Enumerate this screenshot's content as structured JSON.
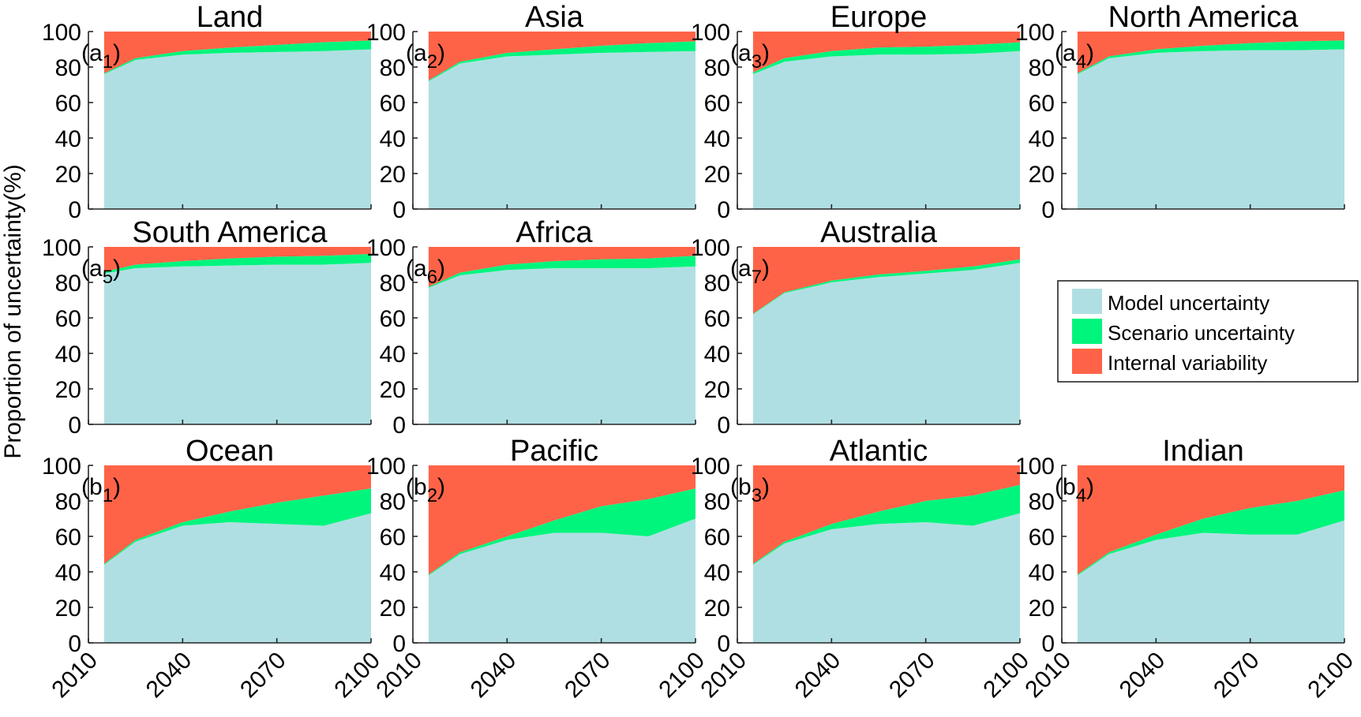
{
  "figure": {
    "ylabel": "Proportion of uncertainty(%)",
    "colors": {
      "model": "#b0dfe3",
      "scenario": "#00f57d",
      "internal": "#ff6347",
      "axis": "#262626"
    },
    "legend": {
      "placement": "right, second row",
      "entries": [
        {
          "key": "model",
          "label": "Model uncertainty"
        },
        {
          "key": "scenario",
          "label": "Scenario uncertainty"
        },
        {
          "key": "internal",
          "label": "Internal variability"
        }
      ]
    }
  },
  "chart_data": [
    {
      "type": "area",
      "title": "Land",
      "panel_label": {
        "letter": "a",
        "sub": "1"
      },
      "x": [
        2015,
        2025,
        2040,
        2055,
        2070,
        2085,
        2100
      ],
      "series": [
        {
          "name": "Model uncertainty",
          "values": [
            76,
            84,
            87,
            88,
            88.5,
            89,
            90
          ]
        },
        {
          "name": "Scenario uncertainty",
          "values": [
            0.5,
            1,
            2,
            3,
            4,
            5,
            5
          ]
        },
        {
          "name": "Internal variability",
          "values": [
            23.5,
            15,
            11,
            9,
            7.5,
            6,
            5
          ]
        }
      ],
      "xlim": [
        2010,
        2100
      ],
      "ylim": [
        0,
        100
      ],
      "xticks": [
        "2010",
        "2040",
        "2070",
        "2100"
      ],
      "yticks": [
        "0",
        "20",
        "40",
        "60",
        "80",
        "100"
      ]
    },
    {
      "type": "area",
      "title": "Asia",
      "panel_label": {
        "letter": "a",
        "sub": "2"
      },
      "x": [
        2015,
        2025,
        2040,
        2055,
        2070,
        2085,
        2100
      ],
      "series": [
        {
          "name": "Model uncertainty",
          "values": [
            72,
            82,
            86,
            87,
            88,
            88.5,
            89
          ]
        },
        {
          "name": "Scenario uncertainty",
          "values": [
            0.5,
            1,
            2,
            3,
            4,
            5,
            5.5
          ]
        },
        {
          "name": "Internal variability",
          "values": [
            27.5,
            17,
            12,
            10,
            8,
            6.5,
            5.5
          ]
        }
      ],
      "xlim": [
        2010,
        2100
      ],
      "ylim": [
        0,
        100
      ],
      "xticks": [
        "2010",
        "2040",
        "2070",
        "2100"
      ],
      "yticks": [
        "0",
        "20",
        "40",
        "60",
        "80",
        "100"
      ]
    },
    {
      "type": "area",
      "title": "Europe",
      "panel_label": {
        "letter": "a",
        "sub": "3"
      },
      "x": [
        2015,
        2025,
        2040,
        2055,
        2070,
        2085,
        2100
      ],
      "series": [
        {
          "name": "Model uncertainty",
          "values": [
            76,
            83,
            86,
            87,
            87,
            87.5,
            89
          ]
        },
        {
          "name": "Scenario uncertainty",
          "values": [
            1,
            2,
            3,
            4,
            4.5,
            5,
            5
          ]
        },
        {
          "name": "Internal variability",
          "values": [
            23,
            15,
            11,
            9,
            8.5,
            7.5,
            6
          ]
        }
      ],
      "xlim": [
        2010,
        2100
      ],
      "ylim": [
        0,
        100
      ],
      "xticks": [
        "2010",
        "2040",
        "2070",
        "2100"
      ],
      "yticks": [
        "0",
        "20",
        "40",
        "60",
        "80",
        "100"
      ]
    },
    {
      "type": "area",
      "title": "North America",
      "panel_label": {
        "letter": "a",
        "sub": "4"
      },
      "x": [
        2015,
        2025,
        2040,
        2055,
        2070,
        2085,
        2100
      ],
      "series": [
        {
          "name": "Model uncertainty",
          "values": [
            76,
            85,
            88,
            89,
            89.5,
            89.5,
            90
          ]
        },
        {
          "name": "Scenario uncertainty",
          "values": [
            0.5,
            1,
            2,
            3,
            4,
            5,
            5
          ]
        },
        {
          "name": "Internal variability",
          "values": [
            23.5,
            14,
            10,
            8,
            6.5,
            5.5,
            5
          ]
        }
      ],
      "xlim": [
        2010,
        2100
      ],
      "ylim": [
        0,
        100
      ],
      "xticks": [
        "2010",
        "2040",
        "2070",
        "2100"
      ],
      "yticks": [
        "0",
        "20",
        "40",
        "60",
        "80",
        "100"
      ]
    },
    {
      "type": "area",
      "title": "South America",
      "panel_label": {
        "letter": "a",
        "sub": "5"
      },
      "x": [
        2015,
        2025,
        2040,
        2055,
        2070,
        2085,
        2100
      ],
      "series": [
        {
          "name": "Model uncertainty",
          "values": [
            85,
            88,
            89,
            89.5,
            90,
            90,
            91
          ]
        },
        {
          "name": "Scenario uncertainty",
          "values": [
            1,
            2,
            3,
            4,
            4.5,
            5,
            5
          ]
        },
        {
          "name": "Internal variability",
          "values": [
            14,
            10,
            8,
            6.5,
            5.5,
            5,
            4
          ]
        }
      ],
      "xlim": [
        2010,
        2100
      ],
      "ylim": [
        0,
        100
      ],
      "xticks": [
        "2010",
        "2040",
        "2070",
        "2100"
      ],
      "yticks": [
        "0",
        "20",
        "40",
        "60",
        "80",
        "100"
      ]
    },
    {
      "type": "area",
      "title": "Africa",
      "panel_label": {
        "letter": "a",
        "sub": "6"
      },
      "x": [
        2015,
        2025,
        2040,
        2055,
        2070,
        2085,
        2100
      ],
      "series": [
        {
          "name": "Model uncertainty",
          "values": [
            77,
            84,
            87,
            88,
            88,
            88,
            89
          ]
        },
        {
          "name": "Scenario uncertainty",
          "values": [
            0.5,
            1.5,
            3,
            4,
            5,
            5.5,
            6
          ]
        },
        {
          "name": "Internal variability",
          "values": [
            22.5,
            14.5,
            10,
            8,
            7,
            6.5,
            5
          ]
        }
      ],
      "xlim": [
        2010,
        2100
      ],
      "ylim": [
        0,
        100
      ],
      "xticks": [
        "2010",
        "2040",
        "2070",
        "2100"
      ],
      "yticks": [
        "0",
        "20",
        "40",
        "60",
        "80",
        "100"
      ]
    },
    {
      "type": "area",
      "title": "Australia",
      "panel_label": {
        "letter": "a",
        "sub": "7"
      },
      "x": [
        2015,
        2025,
        2040,
        2055,
        2070,
        2085,
        2100
      ],
      "series": [
        {
          "name": "Model uncertainty",
          "values": [
            62,
            74,
            80,
            83,
            85,
            87,
            91
          ]
        },
        {
          "name": "Scenario uncertainty",
          "values": [
            0.3,
            0.5,
            1,
            1.5,
            1.5,
            2,
            2
          ]
        },
        {
          "name": "Internal variability",
          "values": [
            37.7,
            25.5,
            19,
            15.5,
            13.5,
            11,
            7
          ]
        }
      ],
      "xlim": [
        2010,
        2100
      ],
      "ylim": [
        0,
        100
      ],
      "xticks": [
        "2010",
        "2040",
        "2070",
        "2100"
      ],
      "yticks": [
        "0",
        "20",
        "40",
        "60",
        "80",
        "100"
      ]
    },
    {
      "type": "area",
      "title": "Ocean",
      "panel_label": {
        "letter": "b",
        "sub": "1"
      },
      "x": [
        2015,
        2025,
        2040,
        2055,
        2070,
        2085,
        2100
      ],
      "series": [
        {
          "name": "Model uncertainty",
          "values": [
            44,
            57,
            66,
            68,
            67,
            66,
            73
          ]
        },
        {
          "name": "Scenario uncertainty",
          "values": [
            0.5,
            1,
            2,
            6,
            12,
            17,
            14
          ]
        },
        {
          "name": "Internal variability",
          "values": [
            55.5,
            42,
            32,
            26,
            21,
            17,
            13
          ]
        }
      ],
      "xlim": [
        2010,
        2100
      ],
      "ylim": [
        0,
        100
      ],
      "xticks": [
        "2010",
        "2040",
        "2070",
        "2100"
      ],
      "yticks": [
        "0",
        "20",
        "40",
        "60",
        "80",
        "100"
      ]
    },
    {
      "type": "area",
      "title": "Pacific",
      "panel_label": {
        "letter": "b",
        "sub": "2"
      },
      "x": [
        2015,
        2025,
        2040,
        2055,
        2070,
        2085,
        2100
      ],
      "series": [
        {
          "name": "Model uncertainty",
          "values": [
            38,
            50,
            58,
            62,
            62,
            60,
            70
          ]
        },
        {
          "name": "Scenario uncertainty",
          "values": [
            0.5,
            1,
            2,
            7,
            15,
            21,
            17
          ]
        },
        {
          "name": "Internal variability",
          "values": [
            61.5,
            49,
            40,
            31,
            23,
            19,
            13
          ]
        }
      ],
      "xlim": [
        2010,
        2100
      ],
      "ylim": [
        0,
        100
      ],
      "xticks": [
        "2010",
        "2040",
        "2070",
        "2100"
      ],
      "yticks": [
        "0",
        "20",
        "40",
        "60",
        "80",
        "100"
      ]
    },
    {
      "type": "area",
      "title": "Atlantic",
      "panel_label": {
        "letter": "b",
        "sub": "3"
      },
      "x": [
        2015,
        2025,
        2040,
        2055,
        2070,
        2085,
        2100
      ],
      "series": [
        {
          "name": "Model uncertainty",
          "values": [
            44,
            56,
            64,
            67,
            68,
            66,
            73
          ]
        },
        {
          "name": "Scenario uncertainty",
          "values": [
            0.5,
            1,
            3,
            7,
            12,
            17,
            16
          ]
        },
        {
          "name": "Internal variability",
          "values": [
            55.5,
            43,
            33,
            26,
            20,
            17,
            11
          ]
        }
      ],
      "xlim": [
        2010,
        2100
      ],
      "ylim": [
        0,
        100
      ],
      "xticks": [
        "2010",
        "2040",
        "2070",
        "2100"
      ],
      "yticks": [
        "0",
        "20",
        "40",
        "60",
        "80",
        "100"
      ]
    },
    {
      "type": "area",
      "title": "Indian",
      "panel_label": {
        "letter": "b",
        "sub": "4"
      },
      "x": [
        2015,
        2025,
        2040,
        2055,
        2070,
        2085,
        2100
      ],
      "series": [
        {
          "name": "Model uncertainty",
          "values": [
            38,
            50,
            58,
            62,
            61,
            61,
            69
          ]
        },
        {
          "name": "Scenario uncertainty",
          "values": [
            0.5,
            1,
            3,
            8,
            15,
            19,
            17
          ]
        },
        {
          "name": "Internal variability",
          "values": [
            61.5,
            49,
            39,
            30,
            24,
            20,
            14
          ]
        }
      ],
      "xlim": [
        2010,
        2100
      ],
      "ylim": [
        0,
        100
      ],
      "xticks": [
        "2010",
        "2040",
        "2070",
        "2100"
      ],
      "yticks": [
        "0",
        "20",
        "40",
        "60",
        "80",
        "100"
      ]
    }
  ]
}
